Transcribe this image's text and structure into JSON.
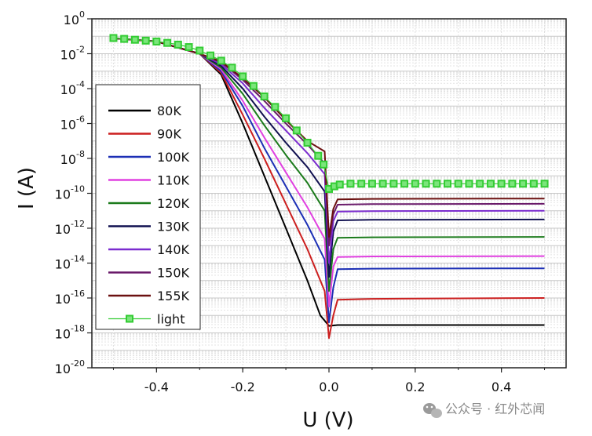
{
  "chart_data": {
    "type": "line",
    "xlabel": "U (V)",
    "ylabel": "I (A)",
    "xlim": [
      -0.55,
      0.55
    ],
    "ylim_log10": [
      -20,
      0
    ],
    "y_scale": "log",
    "grid": true,
    "legend_position": "left",
    "x_ticks": [
      "-0.4",
      "-0.2",
      "0.0",
      "0.2",
      "0.4"
    ],
    "x_tick_values": [
      -0.4,
      -0.2,
      0.0,
      0.2,
      0.4
    ],
    "y_ticks": [
      {
        "base": "10",
        "exp": "0"
      },
      {
        "base": "10",
        "exp": "-2"
      },
      {
        "base": "10",
        "exp": "-4"
      },
      {
        "base": "10",
        "exp": "-6"
      },
      {
        "base": "10",
        "exp": "-8"
      },
      {
        "base": "10",
        "exp": "-10"
      },
      {
        "base": "10",
        "exp": "-12"
      },
      {
        "base": "10",
        "exp": "-14"
      },
      {
        "base": "10",
        "exp": "-16"
      },
      {
        "base": "10",
        "exp": "-18"
      },
      {
        "base": "10",
        "exp": "-20"
      }
    ],
    "y_tick_log10": [
      0,
      -2,
      -4,
      -6,
      -8,
      -10,
      -12,
      -14,
      -16,
      -18,
      -20
    ],
    "series": [
      {
        "name": "80K",
        "color": "#000000",
        "points": [
          [
            -0.5,
            -1.12
          ],
          [
            -0.4,
            -1.3
          ],
          [
            -0.3,
            -2.0
          ],
          [
            -0.25,
            -3.2
          ],
          [
            -0.2,
            -6.0
          ],
          [
            -0.15,
            -9.0
          ],
          [
            -0.1,
            -12.0
          ],
          [
            -0.05,
            -15.0
          ],
          [
            -0.02,
            -17.0
          ],
          [
            -0.01,
            -17.3
          ],
          [
            0.0,
            -17.6
          ],
          [
            0.02,
            -17.55
          ],
          [
            0.1,
            -17.55
          ],
          [
            0.5,
            -17.55
          ]
        ]
      },
      {
        "name": "90K",
        "color": "#cc1f1f",
        "points": [
          [
            -0.5,
            -1.12
          ],
          [
            -0.4,
            -1.3
          ],
          [
            -0.3,
            -2.0
          ],
          [
            -0.25,
            -3.1
          ],
          [
            -0.2,
            -5.5
          ],
          [
            -0.15,
            -8.0
          ],
          [
            -0.1,
            -10.6
          ],
          [
            -0.05,
            -13.2
          ],
          [
            -0.01,
            -15.6
          ],
          [
            0.0,
            -18.3
          ],
          [
            0.01,
            -17.0
          ],
          [
            0.02,
            -16.1
          ],
          [
            0.1,
            -16.05
          ],
          [
            0.5,
            -16.0
          ]
        ]
      },
      {
        "name": "100K",
        "color": "#1c2fb5",
        "points": [
          [
            -0.5,
            -1.12
          ],
          [
            -0.4,
            -1.3
          ],
          [
            -0.3,
            -2.0
          ],
          [
            -0.25,
            -3.0
          ],
          [
            -0.2,
            -5.0
          ],
          [
            -0.15,
            -7.4
          ],
          [
            -0.1,
            -9.6
          ],
          [
            -0.05,
            -11.8
          ],
          [
            -0.01,
            -13.8
          ],
          [
            0.0,
            -17.4
          ],
          [
            0.01,
            -15.4
          ],
          [
            0.02,
            -14.35
          ],
          [
            0.1,
            -14.32
          ],
          [
            0.5,
            -14.3
          ]
        ]
      },
      {
        "name": "110K",
        "color": "#e040e0",
        "points": [
          [
            -0.5,
            -1.12
          ],
          [
            -0.4,
            -1.3
          ],
          [
            -0.3,
            -2.0
          ],
          [
            -0.25,
            -2.9
          ],
          [
            -0.2,
            -4.7
          ],
          [
            -0.15,
            -6.8
          ],
          [
            -0.1,
            -8.8
          ],
          [
            -0.05,
            -10.8
          ],
          [
            -0.01,
            -12.6
          ],
          [
            0.0,
            -16.5
          ],
          [
            0.01,
            -14.2
          ],
          [
            0.02,
            -13.65
          ],
          [
            0.1,
            -13.62
          ],
          [
            0.5,
            -13.6
          ]
        ]
      },
      {
        "name": "120K",
        "color": "#1a7a1a",
        "points": [
          [
            -0.5,
            -1.12
          ],
          [
            -0.4,
            -1.3
          ],
          [
            -0.3,
            -2.0
          ],
          [
            -0.25,
            -2.8
          ],
          [
            -0.2,
            -4.3
          ],
          [
            -0.15,
            -6.1
          ],
          [
            -0.1,
            -7.8
          ],
          [
            -0.05,
            -9.4
          ],
          [
            -0.01,
            -11.0
          ],
          [
            0.0,
            -15.6
          ],
          [
            0.01,
            -13.2
          ],
          [
            0.02,
            -12.55
          ],
          [
            0.1,
            -12.52
          ],
          [
            0.5,
            -12.5
          ]
        ]
      },
      {
        "name": "130K",
        "color": "#101050",
        "points": [
          [
            -0.5,
            -1.12
          ],
          [
            -0.4,
            -1.3
          ],
          [
            -0.3,
            -2.0
          ],
          [
            -0.25,
            -2.7
          ],
          [
            -0.2,
            -4.0
          ],
          [
            -0.15,
            -5.6
          ],
          [
            -0.1,
            -7.1
          ],
          [
            -0.05,
            -8.5
          ],
          [
            -0.01,
            -9.9
          ],
          [
            0.0,
            -14.8
          ],
          [
            0.01,
            -12.2
          ],
          [
            0.02,
            -11.55
          ],
          [
            0.1,
            -11.52
          ],
          [
            0.5,
            -11.5
          ]
        ]
      },
      {
        "name": "140K",
        "color": "#7b2ccf",
        "points": [
          [
            -0.5,
            -1.12
          ],
          [
            -0.4,
            -1.3
          ],
          [
            -0.3,
            -2.0
          ],
          [
            -0.25,
            -2.6
          ],
          [
            -0.2,
            -3.7
          ],
          [
            -0.15,
            -5.1
          ],
          [
            -0.1,
            -6.4
          ],
          [
            -0.05,
            -7.7
          ],
          [
            -0.01,
            -8.9
          ],
          [
            0.0,
            -14.0
          ],
          [
            0.01,
            -11.6
          ],
          [
            0.02,
            -11.05
          ],
          [
            0.1,
            -11.02
          ],
          [
            0.5,
            -11.0
          ]
        ]
      },
      {
        "name": "150K",
        "color": "#6a1a6a",
        "points": [
          [
            -0.5,
            -1.12
          ],
          [
            -0.4,
            -1.3
          ],
          [
            -0.3,
            -2.0
          ],
          [
            -0.25,
            -2.5
          ],
          [
            -0.2,
            -3.5
          ],
          [
            -0.15,
            -4.7
          ],
          [
            -0.1,
            -6.0
          ],
          [
            -0.05,
            -7.2
          ],
          [
            -0.01,
            -8.3
          ],
          [
            0.0,
            -13.0
          ],
          [
            0.01,
            -11.2
          ],
          [
            0.02,
            -10.65
          ],
          [
            0.1,
            -10.62
          ],
          [
            0.5,
            -10.6
          ]
        ]
      },
      {
        "name": "155K",
        "color": "#6b1010",
        "points": [
          [
            -0.5,
            -1.12
          ],
          [
            -0.4,
            -1.3
          ],
          [
            -0.3,
            -2.0
          ],
          [
            -0.25,
            -2.45
          ],
          [
            -0.2,
            -3.4
          ],
          [
            -0.15,
            -4.5
          ],
          [
            -0.1,
            -5.8
          ],
          [
            -0.05,
            -7.0
          ],
          [
            -0.01,
            -7.6
          ],
          [
            0.0,
            -12.5
          ],
          [
            0.01,
            -10.9
          ],
          [
            0.02,
            -10.35
          ],
          [
            0.1,
            -10.32
          ],
          [
            0.5,
            -10.3
          ]
        ]
      },
      {
        "name": "light",
        "color": "#33cc33",
        "marker": "square",
        "points": [
          [
            -0.5,
            -1.1
          ],
          [
            -0.475,
            -1.15
          ],
          [
            -0.45,
            -1.2
          ],
          [
            -0.425,
            -1.25
          ],
          [
            -0.4,
            -1.3
          ],
          [
            -0.375,
            -1.38
          ],
          [
            -0.35,
            -1.48
          ],
          [
            -0.325,
            -1.62
          ],
          [
            -0.3,
            -1.82
          ],
          [
            -0.275,
            -2.1
          ],
          [
            -0.25,
            -2.4
          ],
          [
            -0.225,
            -2.8
          ],
          [
            -0.2,
            -3.3
          ],
          [
            -0.175,
            -3.85
          ],
          [
            -0.15,
            -4.45
          ],
          [
            -0.125,
            -5.05
          ],
          [
            -0.1,
            -5.7
          ],
          [
            -0.075,
            -6.4
          ],
          [
            -0.05,
            -7.1
          ],
          [
            -0.025,
            -7.85
          ],
          [
            -0.0125,
            -8.35
          ],
          [
            0.0,
            -9.75
          ],
          [
            0.0125,
            -9.6
          ],
          [
            0.025,
            -9.5
          ],
          [
            0.05,
            -9.45
          ],
          [
            0.075,
            -9.45
          ],
          [
            0.1,
            -9.45
          ],
          [
            0.125,
            -9.45
          ],
          [
            0.15,
            -9.45
          ],
          [
            0.175,
            -9.45
          ],
          [
            0.2,
            -9.45
          ],
          [
            0.225,
            -9.45
          ],
          [
            0.25,
            -9.45
          ],
          [
            0.275,
            -9.45
          ],
          [
            0.3,
            -9.45
          ],
          [
            0.325,
            -9.45
          ],
          [
            0.35,
            -9.45
          ],
          [
            0.375,
            -9.45
          ],
          [
            0.4,
            -9.45
          ],
          [
            0.425,
            -9.45
          ],
          [
            0.45,
            -9.45
          ],
          [
            0.475,
            -9.45
          ],
          [
            0.5,
            -9.45
          ]
        ]
      }
    ]
  },
  "watermark": {
    "icon": "wechat-icon",
    "text": "公众号 · 红外芯闻"
  }
}
